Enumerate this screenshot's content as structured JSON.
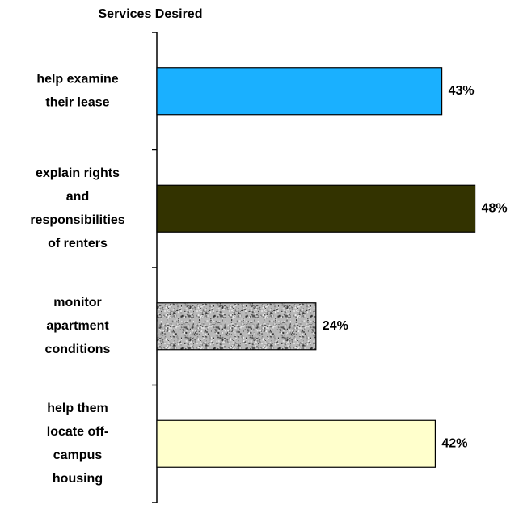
{
  "chart_data": {
    "type": "bar",
    "orientation": "horizontal",
    "title": "Services Desired",
    "categories": [
      [
        "help examine",
        "their lease"
      ],
      [
        "explain rights",
        "and",
        "responsibilities",
        "of renters"
      ],
      [
        "monitor",
        "apartment",
        "conditions"
      ],
      [
        "help them",
        "locate off-",
        "campus",
        "housing"
      ]
    ],
    "values": [
      43,
      48,
      24,
      42
    ],
    "value_labels": [
      "43%",
      "48%",
      "24%",
      "42%"
    ],
    "colors": [
      "#1ab0ff",
      "#333300",
      "pattern-gray",
      "#ffffcc"
    ]
  }
}
